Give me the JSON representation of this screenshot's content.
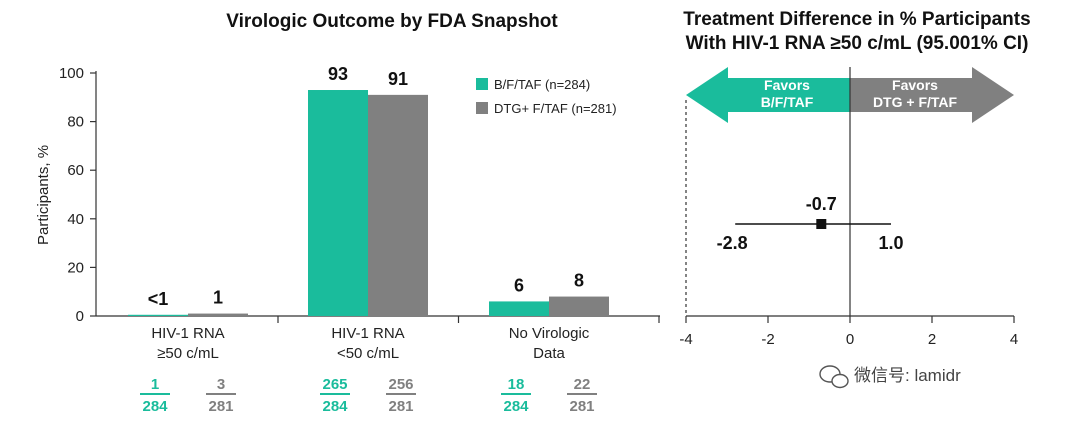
{
  "chart_data": [
    {
      "type": "bar",
      "title": "Virologic Outcome by FDA Snapshot",
      "ylabel": "Participants, %",
      "ylim": [
        0,
        100
      ],
      "yticks": [
        "0",
        "20",
        "40",
        "60",
        "80",
        "100"
      ],
      "categories": [
        {
          "line1": "HIV-1 RNA",
          "line2": "≥50 c/mL"
        },
        {
          "line1": "HIV-1 RNA",
          "line2": "<50 c/mL"
        },
        {
          "line1": "No Virologic",
          "line2": "Data"
        }
      ],
      "series": [
        {
          "name": "B/F/TAF (n=284)",
          "color": "#1abc9c",
          "values": [
            0.5,
            93,
            6
          ],
          "labels": [
            "<1",
            "93",
            "6"
          ],
          "numerators": [
            "1",
            "265",
            "18"
          ],
          "denominator": "284"
        },
        {
          "name": "DTG+ F/TAF (n=281)",
          "color": "#808080",
          "values": [
            1,
            91,
            8
          ],
          "labels": [
            "1",
            "91",
            "8"
          ],
          "numerators": [
            "3",
            "256",
            "22"
          ],
          "denominator": "281"
        }
      ]
    },
    {
      "type": "forest",
      "title_line1": "Treatment Difference in % Participants",
      "title_line2": "With HIV-1 RNA ≥50 c/mL (95.001% CI)",
      "xlim": [
        -4,
        4
      ],
      "xticks": [
        -4,
        -2,
        0,
        2,
        4
      ],
      "xtick_labels": [
        "-4",
        "-2",
        "0",
        "2",
        "4"
      ],
      "point": -0.7,
      "point_label": "-0.7",
      "ci": [
        -2.8,
        1.0
      ],
      "ci_labels": [
        "-2.8",
        "1.0"
      ],
      "left_arrow": {
        "line1": "Favors",
        "line2": "B/F/TAF",
        "color": "#1abc9c"
      },
      "right_arrow": {
        "line1": "Favors",
        "line2": "DTG + F/TAF",
        "color": "#808080"
      }
    }
  ],
  "watermark": {
    "icon": "wechat-icon",
    "text": "微信号: lamidr"
  }
}
